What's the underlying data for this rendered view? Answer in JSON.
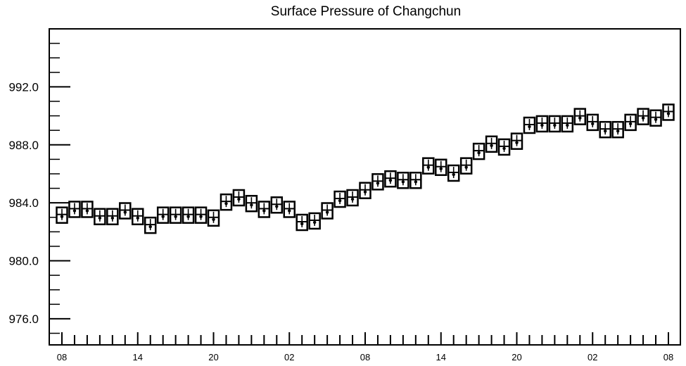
{
  "chart_data": {
    "type": "boxplot",
    "title": "Surface Pressure of Changchun",
    "xlabel": "",
    "ylabel": "",
    "ylim": [
      974.2,
      996.0
    ],
    "yticks": [
      "976.0",
      "980.0",
      "984.0",
      "988.0",
      "992.0"
    ],
    "ytick_values": [
      976,
      980,
      984,
      988,
      992
    ],
    "xticks": [
      "08",
      "14",
      "20",
      "02",
      "08",
      "14",
      "20",
      "02",
      "08"
    ],
    "xtick_index": [
      0,
      6,
      12,
      18,
      24,
      30,
      36,
      42,
      48
    ],
    "series": [
      {
        "values": [
          983.1,
          983.5,
          983.5,
          983.0,
          983.0,
          983.4,
          983.0,
          982.4,
          983.1,
          983.1,
          983.1,
          983.1,
          982.9,
          984.0,
          984.3,
          983.9,
          983.5,
          983.8,
          983.5,
          982.6,
          982.7,
          983.4,
          984.2,
          984.3,
          984.8,
          985.4,
          985.6,
          985.5,
          985.5,
          986.5,
          986.4,
          986.0,
          986.5,
          987.5,
          988.0,
          987.8,
          988.2,
          989.3,
          989.4,
          989.4,
          989.4,
          989.9,
          989.5,
          989.0,
          989.0,
          989.5,
          989.9,
          989.8,
          990.2
        ]
      }
    ]
  }
}
